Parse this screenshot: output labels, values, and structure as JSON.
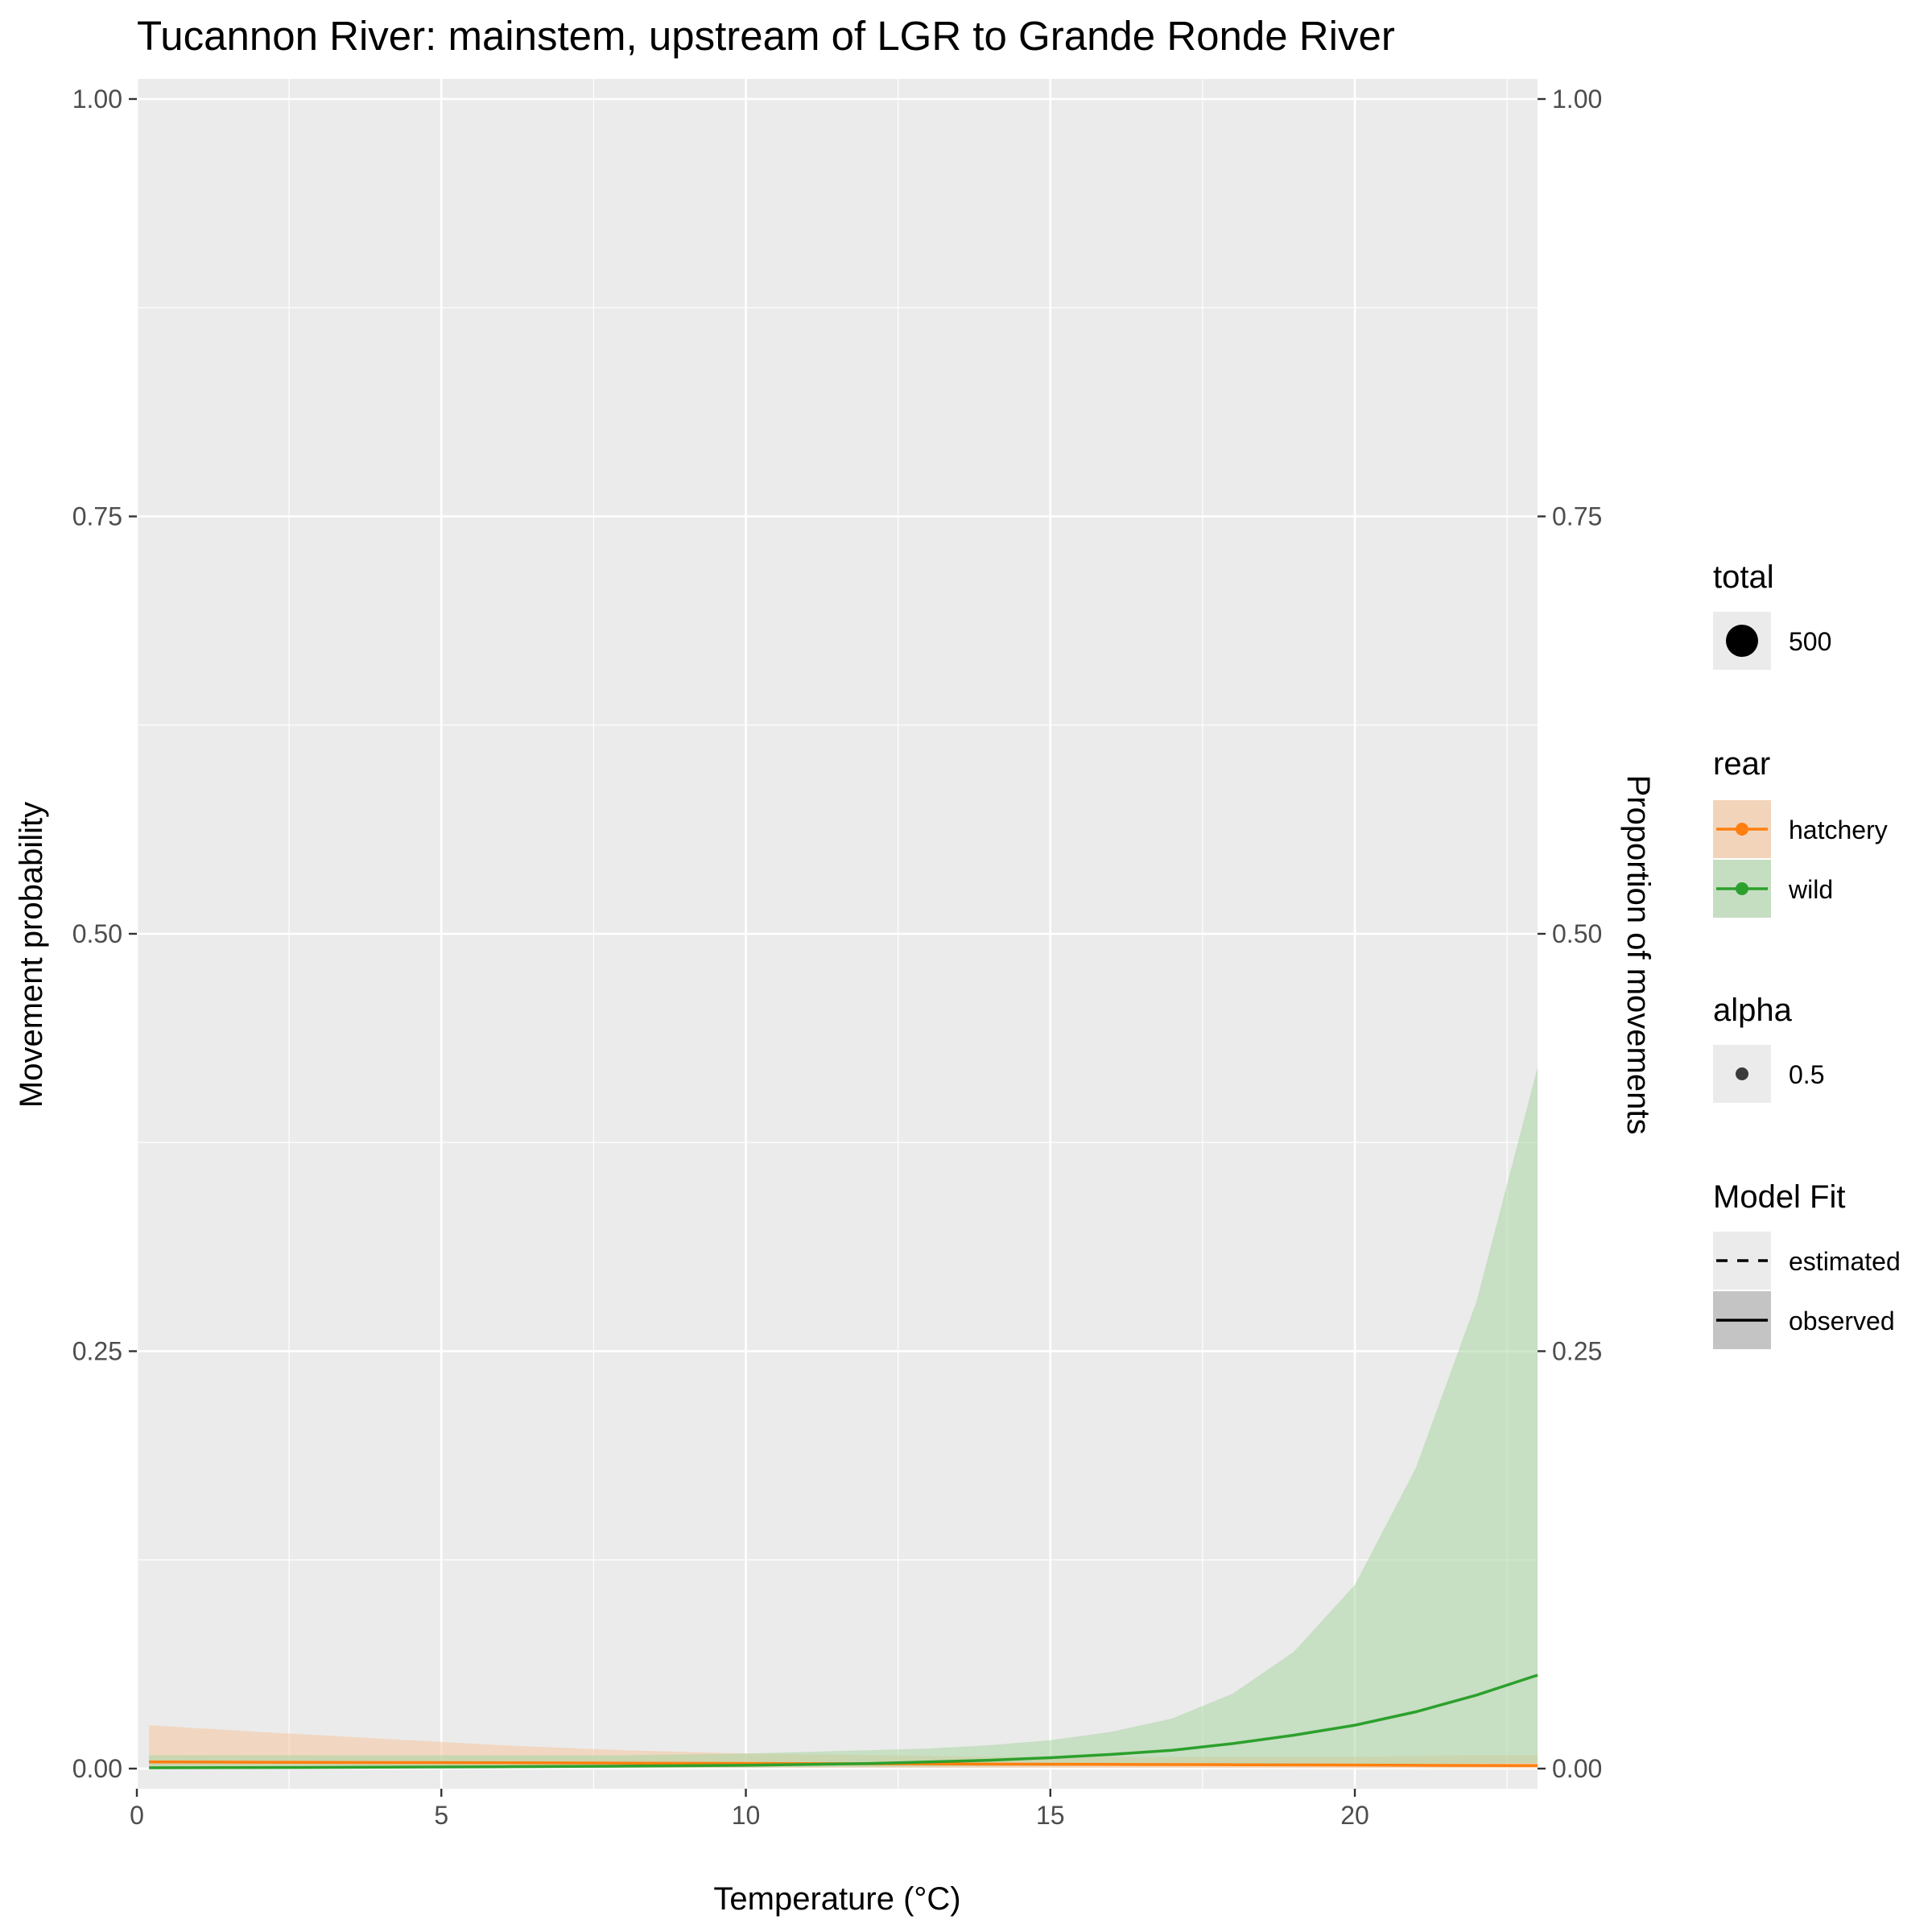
{
  "chart_data": {
    "type": "line",
    "title": "Tucannon River: mainstem, upstream of LGR to Grande Ronde River",
    "xlabel": "Temperature (°C)",
    "ylabel": "Movement probability",
    "ylabel_right": "Proportion of movements",
    "xlim": [
      0,
      23
    ],
    "ylim": [
      0,
      1
    ],
    "x_ticks": [
      0,
      5,
      10,
      15,
      20
    ],
    "x_tick_labels": [
      "0",
      "5",
      "10",
      "15",
      "20"
    ],
    "y_ticks": [
      0,
      0.25,
      0.5,
      0.75,
      1
    ],
    "y_tick_labels": [
      "0.00",
      "0.25",
      "0.50",
      "0.75",
      "1.00"
    ],
    "grid": true,
    "legend_position": "right",
    "series": [
      {
        "name": "hatchery",
        "color": "#ff7f0e",
        "band_color": "#f5c79e",
        "x": [
          0.2,
          2,
          4,
          6,
          8,
          10,
          12,
          14,
          16,
          18,
          20,
          21,
          22,
          23
        ],
        "y": [
          0.004,
          0.0038,
          0.0036,
          0.0035,
          0.0033,
          0.0031,
          0.0029,
          0.0027,
          0.0025,
          0.0023,
          0.0021,
          0.002,
          0.0019,
          0.0018
        ],
        "lower": [
          0.0005,
          0.0005,
          0.0005,
          0.0005,
          0.0005,
          0.0005,
          0.0005,
          0.0005,
          0.0005,
          0.0004,
          0.0003,
          0.0003,
          0.0002,
          0.0002
        ],
        "upper": [
          0.026,
          0.022,
          0.018,
          0.014,
          0.011,
          0.009,
          0.008,
          0.007,
          0.007,
          0.007,
          0.007,
          0.0075,
          0.008,
          0.008
        ]
      },
      {
        "name": "wild",
        "color": "#2ca02c",
        "band_color": "#a9d6a2",
        "x": [
          0.2,
          2,
          4,
          6,
          8,
          10,
          12,
          13,
          14,
          15,
          16,
          17,
          18,
          19,
          20,
          21,
          22,
          23
        ],
        "y": [
          0.0005,
          0.0006,
          0.0008,
          0.0011,
          0.0015,
          0.002,
          0.003,
          0.004,
          0.005,
          0.0065,
          0.0085,
          0.011,
          0.015,
          0.02,
          0.026,
          0.034,
          0.044,
          0.056
        ],
        "lower": [
          0.0001,
          0.0001,
          0.0002,
          0.0003,
          0.0005,
          0.0007,
          0.001,
          0.0012,
          0.0014,
          0.0016,
          0.0018,
          0.002,
          0.0022,
          0.0024,
          0.0026,
          0.0028,
          0.003,
          0.0032
        ],
        "upper": [
          0.008,
          0.008,
          0.008,
          0.008,
          0.008,
          0.009,
          0.011,
          0.012,
          0.014,
          0.017,
          0.022,
          0.03,
          0.045,
          0.07,
          0.11,
          0.18,
          0.28,
          0.42
        ]
      }
    ],
    "legends": {
      "total": {
        "title": "total",
        "items": [
          "500"
        ]
      },
      "rear": {
        "title": "rear",
        "items": [
          "hatchery",
          "wild"
        ]
      },
      "alpha": {
        "title": "alpha",
        "items": [
          "0.5"
        ]
      },
      "model_fit": {
        "title": "Model Fit",
        "items": [
          "estimated",
          "observed"
        ]
      }
    }
  }
}
